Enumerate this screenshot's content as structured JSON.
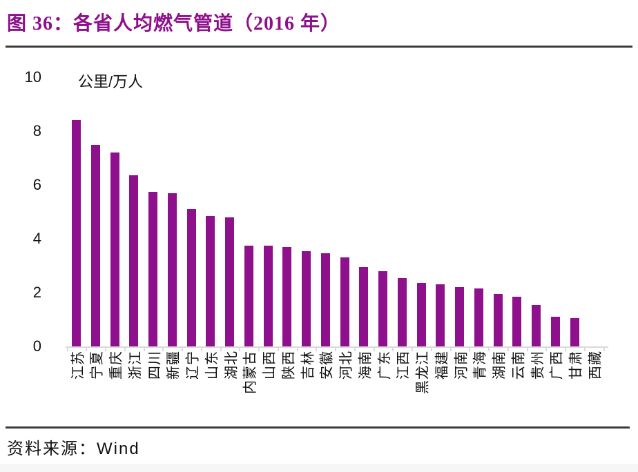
{
  "figure": {
    "title": "图 36：各省人均燃气管道（2016 年）",
    "source_label": "资料来源：Wind"
  },
  "chart_data": {
    "type": "bar",
    "title": "各省人均燃气管道（2016 年）",
    "year": "2016",
    "unit_label": "公里/万人",
    "ylabel": "公里/万人",
    "xlabel": "",
    "ylim": [
      0,
      10
    ],
    "y_ticks": [
      0,
      2,
      4,
      6,
      8,
      10
    ],
    "grid": false,
    "legend": false,
    "bar_color": "#8E108C",
    "categories": [
      "江苏",
      "宁夏",
      "重庆",
      "浙江",
      "四川",
      "新疆",
      "辽宁",
      "山东",
      "湖北",
      "内蒙古",
      "山西",
      "陕西",
      "吉林",
      "安徽",
      "河北",
      "海南",
      "广东",
      "江西",
      "黑龙江",
      "福建",
      "河南",
      "青海",
      "湖南",
      "云南",
      "贵州",
      "广西",
      "甘肃",
      "西藏"
    ],
    "values": [
      8.4,
      7.5,
      7.2,
      6.35,
      5.75,
      5.7,
      5.1,
      4.85,
      4.8,
      3.75,
      3.75,
      3.7,
      3.55,
      3.45,
      3.3,
      2.95,
      2.8,
      2.55,
      2.35,
      2.3,
      2.2,
      2.15,
      1.95,
      1.85,
      1.55,
      1.1,
      1.05,
      0
    ]
  },
  "colors": {
    "accent": "#8E108C",
    "divider": "#3c3c3c",
    "axis": "#d9d9d9",
    "text": "#111111"
  }
}
